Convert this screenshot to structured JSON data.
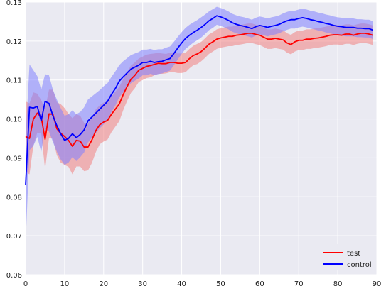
{
  "chart_data": {
    "type": "line",
    "title": "",
    "xlabel": "",
    "ylabel": "",
    "xlim": [
      0,
      90
    ],
    "ylim": [
      0.06,
      0.13
    ],
    "x_ticks": [
      0,
      10,
      20,
      30,
      40,
      50,
      60,
      70,
      80,
      90
    ],
    "y_ticks": [
      0.06,
      0.07,
      0.08,
      0.09,
      0.1,
      0.11,
      0.12,
      0.13
    ],
    "x_tick_labels": [
      "0",
      "10",
      "20",
      "30",
      "40",
      "50",
      "60",
      "70",
      "80",
      "90"
    ],
    "y_tick_labels": [
      "0.06",
      "0.07",
      "0.08",
      "0.09",
      "0.10",
      "0.11",
      "0.12",
      "0.13"
    ],
    "grid": true,
    "legend_position": "bottom-right",
    "background_color": "#EAEAF2",
    "x": [
      0,
      1,
      2,
      3,
      4,
      5,
      6,
      7,
      8,
      9,
      10,
      11,
      12,
      13,
      14,
      15,
      16,
      17,
      18,
      19,
      20,
      21,
      22,
      23,
      24,
      25,
      26,
      27,
      28,
      29,
      30,
      31,
      32,
      33,
      34,
      35,
      36,
      37,
      38,
      39,
      40,
      41,
      42,
      43,
      44,
      45,
      46,
      47,
      48,
      49,
      50,
      51,
      52,
      53,
      54,
      55,
      56,
      57,
      58,
      59,
      60,
      61,
      62,
      63,
      64,
      65,
      66,
      67,
      68,
      69,
      70,
      71,
      72,
      73,
      74,
      75,
      76,
      77,
      78,
      79,
      80,
      81,
      82,
      83,
      84,
      85,
      86,
      87,
      88,
      89
    ],
    "series": [
      {
        "name": "test",
        "color": "#FF0000",
        "band_color": "#F08080",
        "values": [
          0.0955,
          0.095,
          0.1,
          0.1015,
          0.1005,
          0.0948,
          0.1013,
          0.1012,
          0.0975,
          0.0963,
          0.0955,
          0.0945,
          0.093,
          0.0945,
          0.0943,
          0.0928,
          0.0928,
          0.0946,
          0.097,
          0.0985,
          0.0992,
          0.0996,
          0.1012,
          0.1025,
          0.1038,
          0.1062,
          0.1083,
          0.1102,
          0.1112,
          0.1125,
          0.113,
          0.1135,
          0.1137,
          0.114,
          0.1143,
          0.1142,
          0.1142,
          0.1145,
          0.1145,
          0.1143,
          0.1143,
          0.1145,
          0.1155,
          0.1163,
          0.1167,
          0.1173,
          0.1182,
          0.1192,
          0.1198,
          0.1205,
          0.1208,
          0.121,
          0.1212,
          0.1212,
          0.1215,
          0.1216,
          0.1218,
          0.122,
          0.122,
          0.1217,
          0.1215,
          0.121,
          0.1205,
          0.1205,
          0.1207,
          0.1205,
          0.1203,
          0.1195,
          0.1191,
          0.1198,
          0.1202,
          0.1202,
          0.1205,
          0.1205,
          0.1207,
          0.1208,
          0.121,
          0.1212,
          0.1215,
          0.1216,
          0.1216,
          0.1215,
          0.1218,
          0.1218,
          0.1215,
          0.1218,
          0.122,
          0.122,
          0.1218,
          0.1215
        ],
        "upper": [
          0.1045,
          0.104,
          0.1068,
          0.1065,
          0.1048,
          0.1025,
          0.1075,
          0.1075,
          0.1043,
          0.1038,
          0.1028,
          0.1013,
          0.1002,
          0.1012,
          0.1008,
          0.099,
          0.0988,
          0.1005,
          0.1025,
          0.1035,
          0.1042,
          0.1045,
          0.1058,
          0.107,
          0.1082,
          0.1102,
          0.112,
          0.1137,
          0.1145,
          0.1155,
          0.116,
          0.1165,
          0.1167,
          0.1168,
          0.117,
          0.1168,
          0.1167,
          0.117,
          0.117,
          0.1168,
          0.1168,
          0.117,
          0.118,
          0.1188,
          0.1193,
          0.1198,
          0.1207,
          0.1217,
          0.1223,
          0.123,
          0.1233,
          0.1235,
          0.1237,
          0.1237,
          0.124,
          0.1241,
          0.1243,
          0.1245,
          0.1245,
          0.1242,
          0.124,
          0.1235,
          0.123,
          0.123,
          0.1232,
          0.123,
          0.1228,
          0.122,
          0.1216,
          0.1223,
          0.1227,
          0.1227,
          0.123,
          0.123,
          0.1232,
          0.1233,
          0.1235,
          0.1237,
          0.124,
          0.1241,
          0.1241,
          0.124,
          0.1243,
          0.1243,
          0.124,
          0.1243,
          0.1245,
          0.1245,
          0.1243,
          0.124
        ],
        "lower": [
          0.0865,
          0.0858,
          0.0932,
          0.0965,
          0.0962,
          0.0871,
          0.0951,
          0.0949,
          0.0907,
          0.0888,
          0.0882,
          0.0877,
          0.0858,
          0.0878,
          0.0878,
          0.0866,
          0.0868,
          0.0887,
          0.0915,
          0.0935,
          0.0942,
          0.0947,
          0.0966,
          0.098,
          0.0994,
          0.1022,
          0.1046,
          0.1067,
          0.1079,
          0.1095,
          0.11,
          0.1105,
          0.1107,
          0.1112,
          0.1116,
          0.1116,
          0.1117,
          0.112,
          0.112,
          0.1118,
          0.1118,
          0.112,
          0.113,
          0.1138,
          0.1141,
          0.1148,
          0.1157,
          0.1167,
          0.1173,
          0.118,
          0.1183,
          0.1185,
          0.1187,
          0.1187,
          0.119,
          0.1191,
          0.1193,
          0.1195,
          0.1195,
          0.1192,
          0.119,
          0.1185,
          0.118,
          0.118,
          0.1182,
          0.118,
          0.1178,
          0.117,
          0.1166,
          0.1173,
          0.1177,
          0.1177,
          0.118,
          0.118,
          0.1182,
          0.1183,
          0.1185,
          0.1187,
          0.119,
          0.1191,
          0.1191,
          0.119,
          0.1193,
          0.1193,
          0.119,
          0.1193,
          0.1195,
          0.1195,
          0.1193,
          0.119
        ]
      },
      {
        "name": "control",
        "color": "#0000FF",
        "band_color": "#8080FF",
        "values": [
          0.083,
          0.103,
          0.1028,
          0.1032,
          0.0995,
          0.1045,
          0.104,
          0.1008,
          0.0983,
          0.0962,
          0.0945,
          0.095,
          0.0962,
          0.0952,
          0.096,
          0.0972,
          0.0995,
          0.1005,
          0.1015,
          0.1025,
          0.1035,
          0.1045,
          0.1063,
          0.1078,
          0.1097,
          0.1108,
          0.1118,
          0.1128,
          0.1133,
          0.1138,
          0.1145,
          0.1145,
          0.1148,
          0.1145,
          0.1147,
          0.1148,
          0.1152,
          0.1155,
          0.1168,
          0.1182,
          0.1195,
          0.1207,
          0.1215,
          0.1222,
          0.1228,
          0.1235,
          0.1243,
          0.1252,
          0.1258,
          0.1265,
          0.1262,
          0.1258,
          0.1253,
          0.1247,
          0.1243,
          0.124,
          0.1238,
          0.1235,
          0.1232,
          0.1237,
          0.124,
          0.1238,
          0.1235,
          0.1238,
          0.124,
          0.1243,
          0.1248,
          0.1252,
          0.1255,
          0.1255,
          0.1258,
          0.126,
          0.1258,
          0.1255,
          0.1253,
          0.125,
          0.1248,
          0.1245,
          0.1243,
          0.124,
          0.1238,
          0.1237,
          0.1235,
          0.1235,
          0.1235,
          0.1233,
          0.1233,
          0.1232,
          0.1232,
          0.1228
        ],
        "upper": [
          0.095,
          0.114,
          0.1125,
          0.111,
          0.1075,
          0.1115,
          0.1112,
          0.1075,
          0.105,
          0.1028,
          0.1008,
          0.1012,
          0.1022,
          0.1012,
          0.1018,
          0.103,
          0.105,
          0.1058,
          0.1066,
          0.1074,
          0.1084,
          0.1092,
          0.1108,
          0.1122,
          0.1138,
          0.1148,
          0.1156,
          0.1164,
          0.1168,
          0.1172,
          0.1178,
          0.1178,
          0.118,
          0.1177,
          0.1179,
          0.1179,
          0.1183,
          0.1186,
          0.1198,
          0.1211,
          0.1223,
          0.1234,
          0.1242,
          0.1248,
          0.1254,
          0.1261,
          0.1268,
          0.1276,
          0.1282,
          0.1288,
          0.1285,
          0.1281,
          0.1276,
          0.127,
          0.1266,
          0.1263,
          0.1261,
          0.1258,
          0.1255,
          0.126,
          0.1263,
          0.1261,
          0.1258,
          0.1261,
          0.1263,
          0.1266,
          0.1271,
          0.1275,
          0.1278,
          0.1278,
          0.1281,
          0.1283,
          0.1281,
          0.1278,
          0.1276,
          0.1273,
          0.1271,
          0.1268,
          0.1266,
          0.1263,
          0.1261,
          0.126,
          0.1258,
          0.1258,
          0.1258,
          0.1256,
          0.1256,
          0.1255,
          0.1255,
          0.1251
        ],
        "lower": [
          0.068,
          0.092,
          0.0931,
          0.0954,
          0.0915,
          0.0975,
          0.0968,
          0.0941,
          0.0916,
          0.0896,
          0.0882,
          0.0888,
          0.0902,
          0.0892,
          0.0902,
          0.0914,
          0.094,
          0.0952,
          0.0964,
          0.0976,
          0.0986,
          0.0998,
          0.1018,
          0.1034,
          0.1056,
          0.1068,
          0.108,
          0.1092,
          0.1098,
          0.1104,
          0.1112,
          0.1112,
          0.1116,
          0.1113,
          0.1115,
          0.1117,
          0.1121,
          0.1124,
          0.1138,
          0.1153,
          0.1167,
          0.118,
          0.1188,
          0.1196,
          0.1202,
          0.1209,
          0.1218,
          0.1228,
          0.1234,
          0.1242,
          0.1239,
          0.1235,
          0.123,
          0.1224,
          0.122,
          0.1217,
          0.1215,
          0.1212,
          0.1209,
          0.1214,
          0.1217,
          0.1215,
          0.1212,
          0.1215,
          0.1217,
          0.122,
          0.1225,
          0.1229,
          0.1232,
          0.1232,
          0.1235,
          0.1237,
          0.1235,
          0.1232,
          0.123,
          0.1227,
          0.1225,
          0.1222,
          0.122,
          0.1217,
          0.1215,
          0.1214,
          0.1212,
          0.1212,
          0.1212,
          0.121,
          0.121,
          0.1209,
          0.1209,
          0.1205
        ]
      }
    ]
  }
}
